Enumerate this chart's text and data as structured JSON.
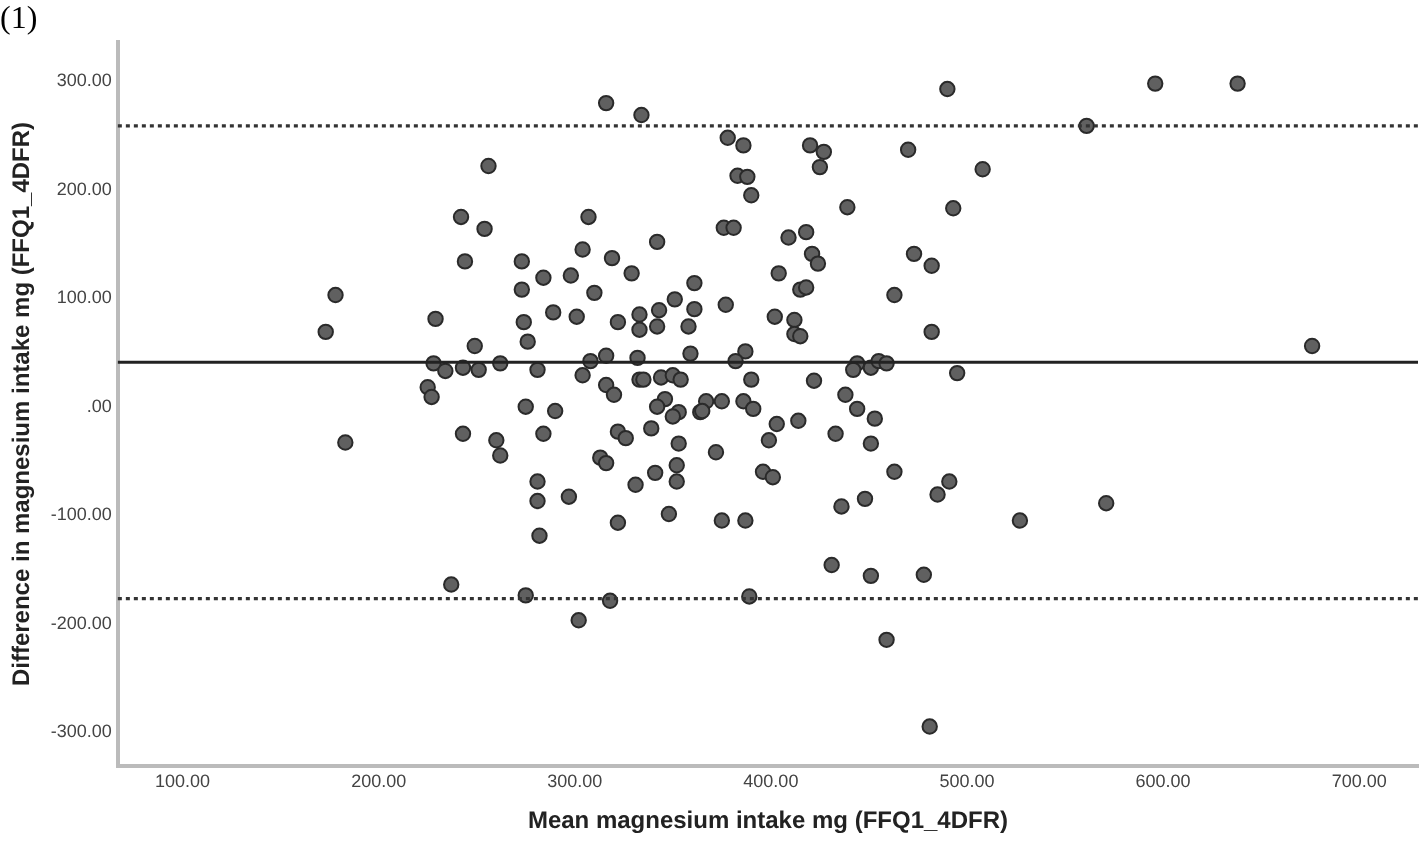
{
  "chart_data": {
    "type": "scatter",
    "title": "(1)",
    "xlabel": "Mean magnesium intake mg (FFQ1_4DFR)",
    "ylabel": "Difference in magnesium intake mg (FFQ1_4DFR)",
    "xlim": [
      67,
      730
    ],
    "ylim": [
      -331,
      336
    ],
    "xticks": [
      {
        "value": 100,
        "label": "100.00"
      },
      {
        "value": 200,
        "label": "200.00"
      },
      {
        "value": 300,
        "label": "300.00"
      },
      {
        "value": 400,
        "label": "400.00"
      },
      {
        "value": 500,
        "label": "500.00"
      },
      {
        "value": 600,
        "label": "600.00"
      },
      {
        "value": 700,
        "label": "700.00"
      }
    ],
    "yticks": [
      {
        "value": -300,
        "label": "-300.00"
      },
      {
        "value": -200,
        "label": "-200.00"
      },
      {
        "value": -100,
        "label": "-100.00"
      },
      {
        "value": 0,
        "label": ".00"
      },
      {
        "value": 100,
        "label": "100.00"
      },
      {
        "value": 200,
        "label": "200.00"
      },
      {
        "value": 300,
        "label": "300.00"
      }
    ],
    "grid": false,
    "legend": false,
    "marker": "circle",
    "ref_lines": [
      {
        "axis": "y",
        "value": 259,
        "color": "#333333",
        "line_style": "dotted"
      },
      {
        "axis": "y",
        "value": 41,
        "color": "#222222",
        "line_style": "solid"
      },
      {
        "axis": "y",
        "value": -177,
        "color": "#333333",
        "line_style": "dotted"
      }
    ],
    "series": [
      {
        "color": "#606060",
        "x": [
          173,
          178,
          316,
          334,
          256,
          242,
          254,
          244,
          307,
          304,
          319,
          342,
          273,
          284,
          298,
          273,
          310,
          329,
          361,
          229,
          274,
          289,
          301,
          322,
          333,
          343,
          351,
          361,
          249,
          276,
          333,
          342,
          358,
          228,
          234,
          243,
          251,
          262,
          281,
          304,
          308,
          316,
          332,
          359,
          333,
          335,
          344,
          350,
          354,
          225,
          227,
          316,
          320,
          346,
          342,
          353,
          350,
          275,
          290,
          243,
          260,
          284,
          322,
          326,
          353,
          183,
          262,
          281,
          281,
          282,
          297,
          313,
          316,
          339,
          341,
          331,
          322,
          348,
          352,
          352,
          237,
          275,
          318,
          302,
          364,
          490,
          596,
          638,
          561,
          676,
          378,
          386,
          420,
          427,
          425,
          470,
          508,
          383,
          388,
          390,
          439,
          493,
          376,
          381,
          409,
          418,
          421,
          424,
          473,
          482,
          404,
          377,
          415,
          418,
          463,
          402,
          412,
          412,
          415,
          482,
          387,
          382,
          444,
          442,
          451,
          455,
          459,
          495,
          390,
          422,
          367,
          365,
          375,
          386,
          391,
          438,
          444,
          453,
          403,
          414,
          399,
          433,
          451,
          372,
          396,
          401,
          463,
          485,
          491,
          436,
          448,
          527,
          571,
          375,
          387,
          431,
          451,
          478,
          389,
          459,
          481
        ],
        "values": [
          69,
          103,
          280,
          269,
          222,
          175,
          164,
          134,
          175,
          145,
          137,
          152,
          134,
          119,
          121,
          108,
          105,
          123,
          114,
          81,
          78,
          87,
          83,
          78,
          85,
          89,
          99,
          90,
          56,
          60,
          71,
          74,
          74,
          40,
          33,
          36,
          34,
          40,
          34,
          29,
          42,
          47,
          45,
          49,
          25,
          25,
          27,
          29,
          25,
          18,
          9,
          20,
          11,
          7,
          0,
          -5,
          -9,
          0,
          -4,
          -25,
          -31,
          -25,
          -23,
          -29,
          -34,
          -33,
          -45,
          -69,
          -87,
          -119,
          -83,
          -47,
          -52,
          -20,
          -61,
          -72,
          -107,
          -99,
          -54,
          -69,
          -164,
          -174,
          -179,
          -197,
          -5,
          293,
          298,
          298,
          259,
          56,
          248,
          241,
          241,
          235,
          221,
          237,
          219,
          213,
          212,
          195,
          184,
          183,
          165,
          165,
          156,
          161,
          141,
          132,
          141,
          130,
          123,
          94,
          108,
          110,
          103,
          83,
          80,
          67,
          65,
          69,
          51,
          42,
          40,
          34,
          36,
          42,
          40,
          31,
          25,
          24,
          5,
          -4,
          5,
          5,
          -2,
          11,
          -2,
          -11,
          -16,
          -13,
          -31,
          -25,
          -34,
          -42,
          -60,
          -65,
          -60,
          -81,
          -69,
          -92,
          -85,
          -105,
          -89,
          -105,
          -105,
          -146,
          -156,
          -155,
          -175,
          -215,
          -295
        ]
      }
    ]
  }
}
